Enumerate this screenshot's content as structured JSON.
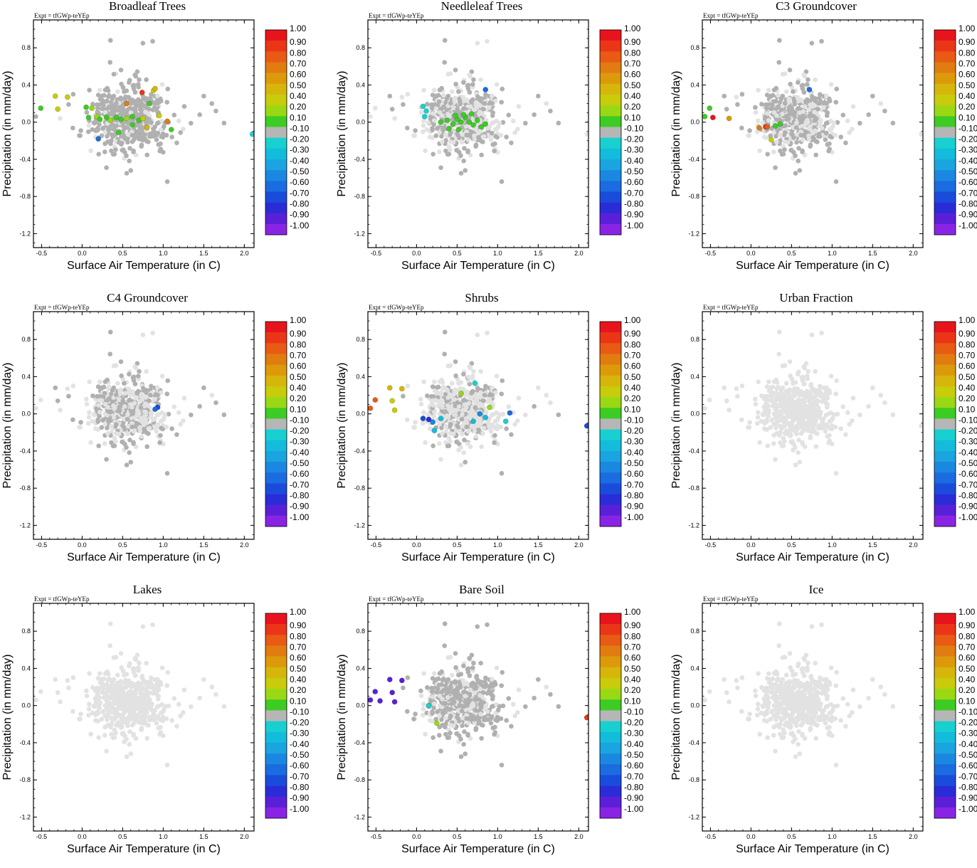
{
  "common": {
    "expt_label": "Expt = tfGWp-teYEp",
    "xlabel": "Surface Air Temperature (in C)",
    "ylabel": "Precipitation (in mm/day)",
    "xlim": [
      -0.6,
      2.12
    ],
    "ylim": [
      -1.35,
      1.1
    ],
    "xticks": [
      "-0.5",
      "0.0",
      "0.5",
      "1.0",
      "1.5",
      "2.0"
    ],
    "xtick_values": [
      -0.5,
      0.0,
      0.5,
      1.0,
      1.5,
      2.0
    ],
    "yticks": [
      "0.8",
      "0.4",
      "0.0",
      "-0.4",
      "-0.8",
      "-1.2"
    ],
    "ytick_values": [
      0.8,
      0.4,
      0.0,
      -0.4,
      -0.8,
      -1.2
    ],
    "colorbar_labels": [
      "1.00",
      "0.90",
      "0.80",
      "0.70",
      "0.60",
      "0.50",
      "0.40",
      "0.20",
      "0.10",
      "-0.10",
      "-0.20",
      "-0.30",
      "-0.40",
      "-0.50",
      "-0.60",
      "-0.70",
      "-0.80",
      "-0.90",
      "-1.00"
    ],
    "colorbar_colors": [
      "#e8141c",
      "#ea3616",
      "#e95a14",
      "#e07c10",
      "#dc9a0a",
      "#d6b60a",
      "#c8cc0a",
      "#9ad814",
      "#3ccc24",
      "#b6b6b6",
      "#18d0d0",
      "#14bcdc",
      "#1aa4e0",
      "#1a88e0",
      "#1a6ce0",
      "#1a4cdc",
      "#2a2cd8",
      "#5a20d8",
      "#8a24e4"
    ],
    "base_light_color": "#e2e2e2",
    "base_dark_color": "#b0b0b0"
  },
  "panels": [
    {
      "title": "Broadleaf Trees",
      "chart_data": {
        "type": "scatter",
        "title": "Broadleaf Trees",
        "base_dark_fraction": 0.85,
        "highlights": [
          {
            "x": -0.51,
            "y": 0.15,
            "v": 0.1
          },
          {
            "x": -0.33,
            "y": 0.28,
            "v": 0.4
          },
          {
            "x": -0.18,
            "y": 0.27,
            "v": 0.4
          },
          {
            "x": -0.3,
            "y": 0.14,
            "v": 0.4
          },
          {
            "x": 0.05,
            "y": 0.16,
            "v": 0.1
          },
          {
            "x": 0.12,
            "y": 0.15,
            "v": 0.2
          },
          {
            "x": 0.08,
            "y": 0.05,
            "v": 0.1
          },
          {
            "x": 0.18,
            "y": 0.06,
            "v": 0.2
          },
          {
            "x": 0.22,
            "y": 0.03,
            "v": 0.1
          },
          {
            "x": 0.3,
            "y": 0.05,
            "v": 0.1
          },
          {
            "x": 0.35,
            "y": 0.02,
            "v": 0.2
          },
          {
            "x": 0.42,
            "y": 0.05,
            "v": 0.1
          },
          {
            "x": 0.48,
            "y": 0.03,
            "v": 0.1
          },
          {
            "x": 0.55,
            "y": 0.04,
            "v": 0.2
          },
          {
            "x": 0.62,
            "y": 0.06,
            "v": 0.1
          },
          {
            "x": 0.7,
            "y": 0.02,
            "v": 0.1
          },
          {
            "x": 0.75,
            "y": 0.04,
            "v": 0.4
          },
          {
            "x": 0.83,
            "y": 0.2,
            "v": 0.1
          },
          {
            "x": 0.88,
            "y": 0.34,
            "v": 0.4
          },
          {
            "x": 0.9,
            "y": 0.36,
            "v": 0.5
          },
          {
            "x": 0.74,
            "y": 0.32,
            "v": 0.9
          },
          {
            "x": 0.55,
            "y": 0.2,
            "v": 0.7
          },
          {
            "x": 0.95,
            "y": 0.07,
            "v": 0.4
          },
          {
            "x": 1.05,
            "y": 0.01,
            "v": 0.7
          },
          {
            "x": 0.8,
            "y": -0.06,
            "v": 0.5
          },
          {
            "x": 0.62,
            "y": -0.03,
            "v": 0.1
          },
          {
            "x": 0.45,
            "y": -0.11,
            "v": 0.1
          },
          {
            "x": 0.2,
            "y": -0.18,
            "v": -0.6
          },
          {
            "x": 1.1,
            "y": -0.08,
            "v": 0.1
          },
          {
            "x": 2.1,
            "y": -0.13,
            "v": -0.2
          }
        ]
      }
    },
    {
      "title": "Needleleaf Trees",
      "chart_data": {
        "type": "scatter",
        "title": "Needleleaf Trees",
        "base_dark_fraction": 0.55,
        "highlights": [
          {
            "x": 0.08,
            "y": 0.17,
            "v": -0.2
          },
          {
            "x": 0.12,
            "y": 0.12,
            "v": -0.2
          },
          {
            "x": 0.1,
            "y": 0.06,
            "v": -0.2
          },
          {
            "x": 0.85,
            "y": 0.35,
            "v": -0.6
          },
          {
            "x": 0.3,
            "y": 0.0,
            "v": 0.1
          },
          {
            "x": 0.38,
            "y": 0.02,
            "v": 0.1
          },
          {
            "x": 0.45,
            "y": -0.02,
            "v": 0.1
          },
          {
            "x": 0.5,
            "y": 0.03,
            "v": 0.1
          },
          {
            "x": 0.55,
            "y": 0.0,
            "v": 0.1
          },
          {
            "x": 0.6,
            "y": 0.05,
            "v": 0.1
          },
          {
            "x": 0.65,
            "y": 0.0,
            "v": 0.1
          },
          {
            "x": 0.7,
            "y": -0.03,
            "v": 0.1
          },
          {
            "x": 0.75,
            "y": 0.02,
            "v": 0.1
          },
          {
            "x": 0.8,
            "y": -0.05,
            "v": 0.1
          },
          {
            "x": 0.85,
            "y": -0.02,
            "v": 0.1
          },
          {
            "x": 0.4,
            "y": -0.07,
            "v": 0.1
          },
          {
            "x": 0.52,
            "y": -0.08,
            "v": 0.1
          },
          {
            "x": 0.58,
            "y": 0.08,
            "v": 0.1
          },
          {
            "x": 0.68,
            "y": 0.09,
            "v": 0.1
          },
          {
            "x": 0.48,
            "y": 0.07,
            "v": 0.1
          }
        ]
      }
    },
    {
      "title": "C3 Groundcover",
      "chart_data": {
        "type": "scatter",
        "title": "C3 Groundcover",
        "base_dark_fraction": 0.6,
        "highlights": [
          {
            "x": -0.57,
            "y": 0.06,
            "v": 0.1
          },
          {
            "x": -0.51,
            "y": 0.15,
            "v": 0.1
          },
          {
            "x": -0.47,
            "y": 0.05,
            "v": 1.0
          },
          {
            "x": -0.27,
            "y": 0.04,
            "v": 0.6
          },
          {
            "x": 0.1,
            "y": -0.06,
            "v": 0.7
          },
          {
            "x": 0.18,
            "y": -0.05,
            "v": 0.9
          },
          {
            "x": 0.2,
            "y": -0.05,
            "v": 0.8
          },
          {
            "x": 0.25,
            "y": -0.19,
            "v": 0.4
          },
          {
            "x": 0.3,
            "y": -0.04,
            "v": 0.1
          },
          {
            "x": 0.36,
            "y": -0.02,
            "v": 0.1
          },
          {
            "x": 0.72,
            "y": 0.35,
            "v": -0.6
          }
        ]
      }
    },
    {
      "title": "C4 Groundcover",
      "chart_data": {
        "type": "scatter",
        "title": "C4 Groundcover",
        "base_dark_fraction": 0.5,
        "highlights": [
          {
            "x": 0.93,
            "y": 0.07,
            "v": -0.7
          },
          {
            "x": 0.9,
            "y": 0.05,
            "v": -0.6
          }
        ]
      }
    },
    {
      "title": "Shrubs",
      "chart_data": {
        "type": "scatter",
        "title": "Shrubs",
        "base_dark_fraction": 0.3,
        "highlights": [
          {
            "x": -0.57,
            "y": 0.06,
            "v": 0.8
          },
          {
            "x": -0.51,
            "y": 0.15,
            "v": 0.8
          },
          {
            "x": -0.33,
            "y": 0.28,
            "v": 0.5
          },
          {
            "x": -0.18,
            "y": 0.27,
            "v": 0.5
          },
          {
            "x": -0.3,
            "y": 0.14,
            "v": 0.4
          },
          {
            "x": -0.27,
            "y": 0.04,
            "v": 0.4
          },
          {
            "x": 0.08,
            "y": -0.05,
            "v": -0.7
          },
          {
            "x": 0.15,
            "y": -0.06,
            "v": -0.8
          },
          {
            "x": 0.22,
            "y": -0.18,
            "v": -0.3
          },
          {
            "x": 0.2,
            "y": -0.09,
            "v": -0.5
          },
          {
            "x": 0.55,
            "y": 0.22,
            "v": 0.2
          },
          {
            "x": 0.72,
            "y": 0.33,
            "v": -0.2
          },
          {
            "x": 0.9,
            "y": 0.07,
            "v": 0.2
          },
          {
            "x": 0.78,
            "y": 0.0,
            "v": -0.5
          },
          {
            "x": 0.85,
            "y": -0.04,
            "v": -0.3
          },
          {
            "x": 1.1,
            "y": -0.08,
            "v": -0.2
          },
          {
            "x": 1.15,
            "y": 0.01,
            "v": -0.6
          },
          {
            "x": 0.3,
            "y": -0.05,
            "v": -0.3
          },
          {
            "x": 0.7,
            "y": -0.08,
            "v": -0.3
          },
          {
            "x": 2.1,
            "y": -0.13,
            "v": -0.7
          }
        ]
      }
    },
    {
      "title": "Urban Fraction",
      "chart_data": {
        "type": "scatter",
        "title": "Urban Fraction",
        "base_dark_fraction": 0.0,
        "highlights": []
      }
    },
    {
      "title": "Lakes",
      "chart_data": {
        "type": "scatter",
        "title": "Lakes",
        "base_dark_fraction": 0.0,
        "highlights": []
      }
    },
    {
      "title": "Bare Soil",
      "chart_data": {
        "type": "scatter",
        "title": "Bare Soil",
        "base_dark_fraction": 0.7,
        "highlights": [
          {
            "x": -0.57,
            "y": 0.06,
            "v": -0.9
          },
          {
            "x": -0.51,
            "y": 0.15,
            "v": -0.9
          },
          {
            "x": -0.45,
            "y": 0.05,
            "v": -0.9
          },
          {
            "x": -0.33,
            "y": 0.28,
            "v": -0.9
          },
          {
            "x": -0.18,
            "y": 0.27,
            "v": -0.9
          },
          {
            "x": -0.3,
            "y": 0.14,
            "v": -0.9
          },
          {
            "x": -0.27,
            "y": 0.04,
            "v": -0.9
          },
          {
            "x": 0.25,
            "y": -0.19,
            "v": 0.2
          },
          {
            "x": 0.15,
            "y": 0.0,
            "v": -0.2
          },
          {
            "x": 2.1,
            "y": -0.13,
            "v": 0.9
          }
        ]
      }
    },
    {
      "title": "Ice",
      "chart_data": {
        "type": "scatter",
        "title": "Ice",
        "base_dark_fraction": 0.0,
        "highlights": []
      }
    }
  ]
}
